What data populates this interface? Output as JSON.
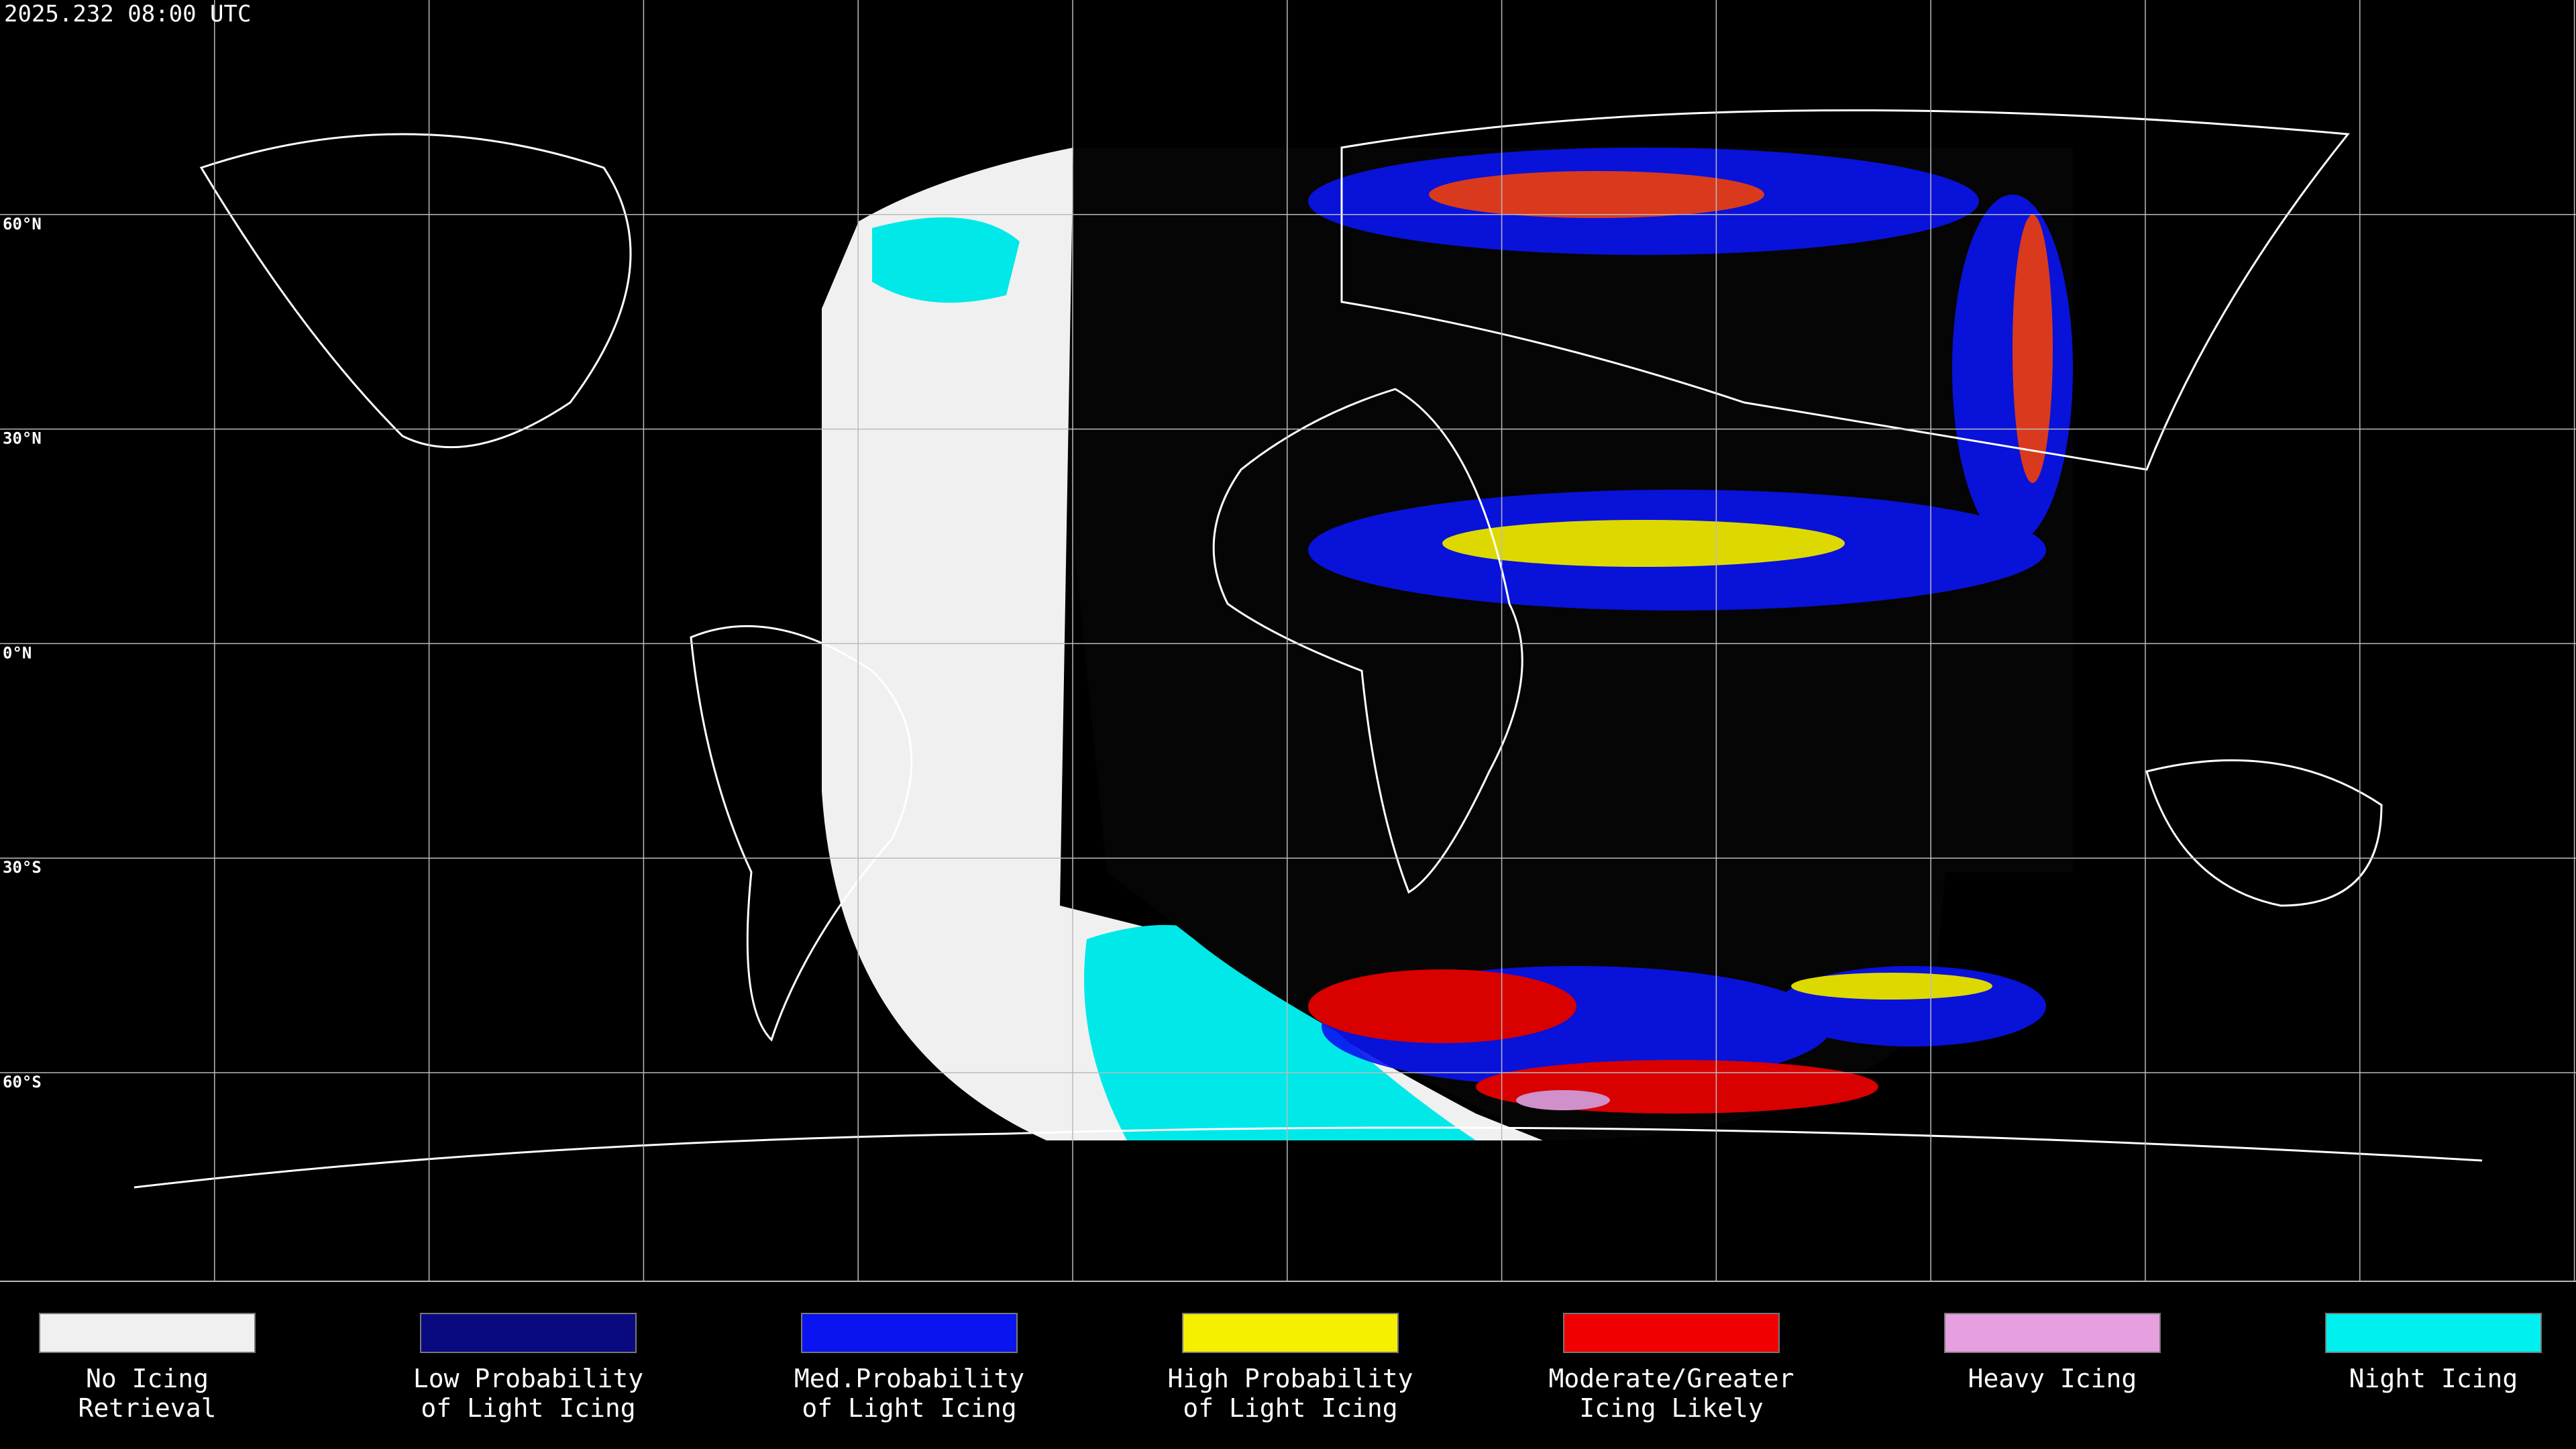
{
  "timestamp": "2025.232 08:00 UTC",
  "lat_labels": [
    "60°N",
    "30°N",
    "0°N",
    "30°S",
    "60°S"
  ],
  "legend": [
    {
      "color": "#f0f0f0",
      "lines": [
        "No Icing",
        "Retrieval"
      ]
    },
    {
      "color": "#0a0a80",
      "lines": [
        "Low Probability",
        "of Light Icing"
      ]
    },
    {
      "color": "#0a14f0",
      "lines": [
        "Med.Probability",
        "of Light Icing"
      ]
    },
    {
      "color": "#f5f000",
      "lines": [
        "High Probability",
        "of Light Icing"
      ]
    },
    {
      "color": "#f00000",
      "lines": [
        "Moderate/Greater",
        "Icing Likely"
      ]
    },
    {
      "color": "#e6a0e0",
      "lines": [
        "Heavy Icing"
      ]
    },
    {
      "color": "#00f0f0",
      "lines": [
        "Night Icing"
      ]
    }
  ]
}
